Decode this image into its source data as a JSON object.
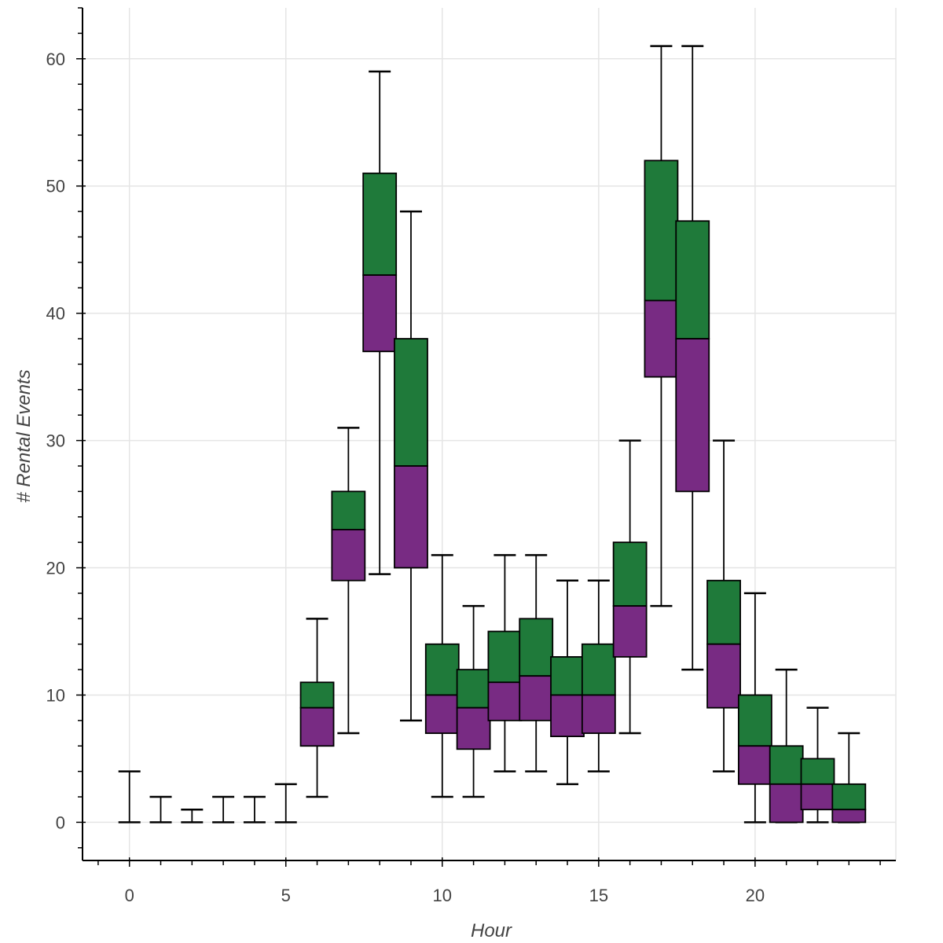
{
  "chart_data": {
    "type": "box",
    "title": "",
    "xlabel": "Hour",
    "ylabel": "# Rental Events",
    "xlim": [
      -1.5,
      24.5
    ],
    "ylim": [
      -3,
      64
    ],
    "grid": true,
    "x_ticks": [
      0,
      5,
      10,
      15,
      20
    ],
    "y_ticks": [
      0,
      10,
      20,
      30,
      40,
      50,
      60
    ],
    "x_tick_labels": [
      "0",
      "5",
      "10",
      "15",
      "20"
    ],
    "y_tick_labels": [
      "0",
      "10",
      "20",
      "30",
      "40",
      "50",
      "60"
    ],
    "colors": {
      "upper_box": "#1f7a3a",
      "lower_box": "#782b83",
      "whisker": "#000000",
      "grid": "#e5e5e5"
    },
    "boxes": [
      {
        "hour": 0,
        "lower": 0,
        "q1": 0,
        "median": 0,
        "q3": 0,
        "upper": 4
      },
      {
        "hour": 1,
        "lower": 0,
        "q1": 0,
        "median": 0,
        "q3": 0,
        "upper": 2
      },
      {
        "hour": 2,
        "lower": 0,
        "q1": 0,
        "median": 0,
        "q3": 0,
        "upper": 1
      },
      {
        "hour": 3,
        "lower": 0,
        "q1": 0,
        "median": 0,
        "q3": 0,
        "upper": 2
      },
      {
        "hour": 4,
        "lower": 0,
        "q1": 0,
        "median": 0,
        "q3": 0,
        "upper": 2
      },
      {
        "hour": 5,
        "lower": 0,
        "q1": 0,
        "median": 0,
        "q3": 0,
        "upper": 3
      },
      {
        "hour": 6,
        "lower": 2,
        "q1": 6,
        "median": 9,
        "q3": 11,
        "upper": 16
      },
      {
        "hour": 7,
        "lower": 7,
        "q1": 19,
        "median": 23,
        "q3": 26,
        "upper": 31
      },
      {
        "hour": 8,
        "lower": 19.5,
        "q1": 37,
        "median": 43,
        "q3": 51,
        "upper": 59
      },
      {
        "hour": 9,
        "lower": 8,
        "q1": 20,
        "median": 28,
        "q3": 38,
        "upper": 48
      },
      {
        "hour": 10,
        "lower": 2,
        "q1": 7,
        "median": 10,
        "q3": 14,
        "upper": 21
      },
      {
        "hour": 11,
        "lower": 2,
        "q1": 5.75,
        "median": 9,
        "q3": 12,
        "upper": 17
      },
      {
        "hour": 12,
        "lower": 4,
        "q1": 8,
        "median": 11,
        "q3": 15,
        "upper": 21
      },
      {
        "hour": 13,
        "lower": 4,
        "q1": 8,
        "median": 11.5,
        "q3": 16,
        "upper": 21
      },
      {
        "hour": 14,
        "lower": 3,
        "q1": 6.75,
        "median": 10,
        "q3": 13,
        "upper": 19
      },
      {
        "hour": 15,
        "lower": 4,
        "q1": 7,
        "median": 10,
        "q3": 14,
        "upper": 19
      },
      {
        "hour": 16,
        "lower": 7,
        "q1": 13,
        "median": 17,
        "q3": 22,
        "upper": 30
      },
      {
        "hour": 17,
        "lower": 17,
        "q1": 35,
        "median": 41,
        "q3": 52,
        "upper": 61
      },
      {
        "hour": 18,
        "lower": 12,
        "q1": 26,
        "median": 38,
        "q3": 47.25,
        "upper": 61
      },
      {
        "hour": 19,
        "lower": 4,
        "q1": 9,
        "median": 14,
        "q3": 19,
        "upper": 30
      },
      {
        "hour": 20,
        "lower": 0,
        "q1": 3,
        "median": 6,
        "q3": 10,
        "upper": 18
      },
      {
        "hour": 21,
        "lower": 0,
        "q1": 0,
        "median": 3,
        "q3": 6,
        "upper": 12
      },
      {
        "hour": 22,
        "lower": 0,
        "q1": 1,
        "median": 3,
        "q3": 5,
        "upper": 9
      },
      {
        "hour": 23,
        "lower": 0,
        "q1": 0,
        "median": 1,
        "q3": 3,
        "upper": 7
      }
    ]
  }
}
